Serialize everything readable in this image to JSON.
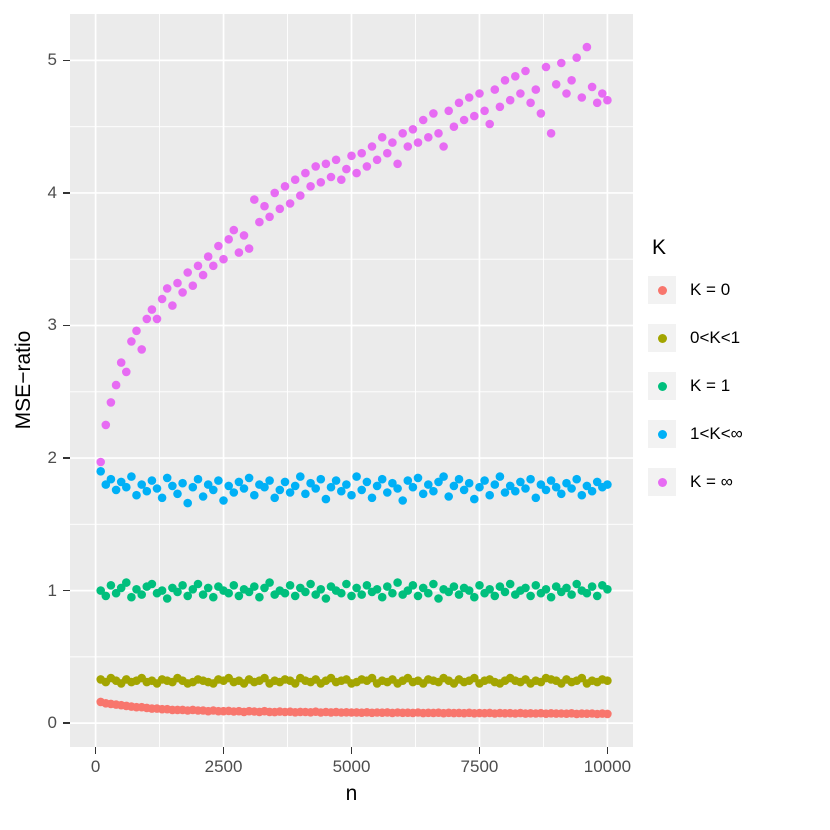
{
  "axes": {
    "x_title": "n",
    "y_title": "MSE−ratio"
  },
  "legend": {
    "title": "K",
    "items": [
      {
        "label": "K = 0",
        "color": "#F8766D",
        "key_bg": "#F2F2F2"
      },
      {
        "label": "0<K<1",
        "color": "#A3A500",
        "key_bg": "#F2F2F2"
      },
      {
        "label": "K = 1",
        "color": "#00BF7D",
        "key_bg": "#F2F2F2"
      },
      {
        "label": "1<K<∞",
        "color": "#00B0F6",
        "key_bg": "#F2F2F2"
      },
      {
        "label": "K = ∞",
        "color": "#E76BF3",
        "key_bg": "#F2F2F2"
      }
    ]
  },
  "chart_data": {
    "type": "scatter",
    "title": "",
    "xlabel": "n",
    "ylabel": "MSE−ratio",
    "xlim": [
      -500,
      10500
    ],
    "ylim": [
      -0.18,
      5.35
    ],
    "xticks": [
      0,
      2500,
      5000,
      7500,
      10000
    ],
    "xtick_labels": [
      "0",
      "2500",
      "5000",
      "7500",
      "10000"
    ],
    "yticks": [
      0,
      1,
      2,
      3,
      4,
      5
    ],
    "ytick_labels": [
      "0",
      "1",
      "2",
      "3",
      "4",
      "5"
    ],
    "x_minor": [
      1250,
      3750,
      6250,
      8750
    ],
    "y_minor": [
      0.5,
      1.5,
      2.5,
      3.5,
      4.5
    ],
    "grid": true,
    "panel_bg": "#EBEBEB",
    "grid_color": "#FFFFFF",
    "legend_title": "K",
    "legend_position": "right",
    "point_radius": 4.3,
    "x": [
      100,
      200,
      300,
      400,
      500,
      600,
      700,
      800,
      900,
      1000,
      1100,
      1200,
      1300,
      1400,
      1500,
      1600,
      1700,
      1800,
      1900,
      2000,
      2100,
      2200,
      2300,
      2400,
      2500,
      2600,
      2700,
      2800,
      2900,
      3000,
      3100,
      3200,
      3300,
      3400,
      3500,
      3600,
      3700,
      3800,
      3900,
      4000,
      4100,
      4200,
      4300,
      4400,
      4500,
      4600,
      4700,
      4800,
      4900,
      5000,
      5100,
      5200,
      5300,
      5400,
      5500,
      5600,
      5700,
      5800,
      5900,
      6000,
      6100,
      6200,
      6300,
      6400,
      6500,
      6600,
      6700,
      6800,
      6900,
      7000,
      7100,
      7200,
      7300,
      7400,
      7500,
      7600,
      7700,
      7800,
      7900,
      8000,
      8100,
      8200,
      8300,
      8400,
      8500,
      8600,
      8700,
      8800,
      8900,
      9000,
      9100,
      9200,
      9300,
      9400,
      9500,
      9600,
      9700,
      9800,
      9900,
      10000
    ],
    "series": [
      {
        "name": "K = 0",
        "color": "#F8766D",
        "values": [
          0.16,
          0.15,
          0.145,
          0.14,
          0.135,
          0.13,
          0.125,
          0.12,
          0.12,
          0.115,
          0.11,
          0.11,
          0.105,
          0.105,
          0.1,
          0.1,
          0.1,
          0.095,
          0.1,
          0.095,
          0.095,
          0.09,
          0.095,
          0.09,
          0.09,
          0.092,
          0.088,
          0.09,
          0.085,
          0.09,
          0.088,
          0.085,
          0.09,
          0.085,
          0.083,
          0.087,
          0.084,
          0.086,
          0.082,
          0.085,
          0.084,
          0.082,
          0.086,
          0.08,
          0.084,
          0.081,
          0.083,
          0.08,
          0.082,
          0.08,
          0.081,
          0.079,
          0.082,
          0.078,
          0.08,
          0.079,
          0.081,
          0.077,
          0.08,
          0.078,
          0.079,
          0.077,
          0.08,
          0.076,
          0.078,
          0.077,
          0.079,
          0.075,
          0.078,
          0.076,
          0.077,
          0.075,
          0.078,
          0.074,
          0.076,
          0.075,
          0.077,
          0.073,
          0.076,
          0.074,
          0.075,
          0.073,
          0.076,
          0.072,
          0.074,
          0.073,
          0.075,
          0.071,
          0.074,
          0.072,
          0.073,
          0.071,
          0.074,
          0.07,
          0.072,
          0.071,
          0.073,
          0.069,
          0.072,
          0.07
        ]
      },
      {
        "name": "0<K<1",
        "color": "#A3A500",
        "values": [
          0.33,
          0.31,
          0.34,
          0.32,
          0.3,
          0.33,
          0.31,
          0.32,
          0.34,
          0.31,
          0.32,
          0.3,
          0.33,
          0.32,
          0.31,
          0.34,
          0.32,
          0.3,
          0.31,
          0.33,
          0.32,
          0.31,
          0.3,
          0.33,
          0.32,
          0.34,
          0.31,
          0.32,
          0.3,
          0.33,
          0.31,
          0.32,
          0.34,
          0.3,
          0.32,
          0.31,
          0.33,
          0.32,
          0.3,
          0.34,
          0.32,
          0.31,
          0.33,
          0.3,
          0.32,
          0.34,
          0.31,
          0.32,
          0.33,
          0.3,
          0.31,
          0.33,
          0.32,
          0.34,
          0.3,
          0.32,
          0.31,
          0.33,
          0.3,
          0.32,
          0.34,
          0.31,
          0.32,
          0.3,
          0.33,
          0.32,
          0.31,
          0.34,
          0.32,
          0.3,
          0.33,
          0.31,
          0.32,
          0.34,
          0.3,
          0.32,
          0.33,
          0.31,
          0.3,
          0.32,
          0.34,
          0.32,
          0.31,
          0.33,
          0.3,
          0.32,
          0.31,
          0.34,
          0.33,
          0.32,
          0.3,
          0.33,
          0.31,
          0.32,
          0.34,
          0.3,
          0.32,
          0.31,
          0.33,
          0.32
        ]
      },
      {
        "name": "K = 1",
        "color": "#00BF7D",
        "values": [
          1.0,
          0.96,
          1.04,
          0.98,
          1.02,
          1.06,
          0.95,
          1.01,
          0.97,
          1.03,
          1.05,
          0.98,
          1.0,
          0.94,
          1.02,
          0.99,
          1.04,
          0.96,
          1.01,
          1.05,
          0.97,
          1.02,
          0.95,
          1.03,
          1.0,
          0.98,
          1.04,
          0.96,
          1.01,
          0.99,
          1.03,
          0.95,
          1.02,
          1.06,
          0.97,
          1.0,
          0.98,
          1.04,
          0.96,
          1.02,
          0.99,
          1.05,
          0.97,
          1.01,
          0.94,
          1.03,
          1.0,
          0.98,
          1.05,
          0.96,
          1.02,
          0.97,
          1.04,
          0.99,
          1.01,
          0.95,
          1.03,
          0.98,
          1.06,
          0.97,
          1.0,
          1.04,
          0.96,
          1.02,
          0.98,
          1.05,
          0.94,
          1.01,
          0.99,
          1.03,
          0.97,
          1.02,
          1.0,
          0.95,
          1.04,
          0.98,
          1.01,
          0.96,
          1.03,
          0.99,
          1.05,
          0.97,
          1.0,
          1.02,
          0.96,
          1.04,
          0.98,
          1.01,
          0.95,
          1.03,
          0.99,
          1.02,
          0.97,
          1.05,
          1.0,
          0.98,
          1.03,
          0.96,
          1.04,
          1.01
        ]
      },
      {
        "name": "1<K<∞",
        "color": "#00B0F6",
        "values": [
          1.9,
          1.8,
          1.84,
          1.76,
          1.82,
          1.78,
          1.86,
          1.72,
          1.8,
          1.75,
          1.83,
          1.77,
          1.7,
          1.85,
          1.79,
          1.73,
          1.81,
          1.66,
          1.78,
          1.84,
          1.71,
          1.8,
          1.76,
          1.83,
          1.68,
          1.79,
          1.74,
          1.82,
          1.77,
          1.85,
          1.72,
          1.8,
          1.78,
          1.83,
          1.7,
          1.76,
          1.82,
          1.74,
          1.79,
          1.86,
          1.73,
          1.81,
          1.77,
          1.84,
          1.69,
          1.78,
          1.83,
          1.75,
          1.8,
          1.72,
          1.86,
          1.76,
          1.82,
          1.7,
          1.79,
          1.84,
          1.74,
          1.81,
          1.77,
          1.68,
          1.83,
          1.78,
          1.85,
          1.73,
          1.8,
          1.75,
          1.82,
          1.86,
          1.71,
          1.79,
          1.84,
          1.76,
          1.81,
          1.69,
          1.78,
          1.83,
          1.72,
          1.8,
          1.86,
          1.74,
          1.79,
          1.75,
          1.82,
          1.77,
          1.84,
          1.7,
          1.8,
          1.76,
          1.83,
          1.78,
          1.73,
          1.81,
          1.77,
          1.84,
          1.72,
          1.79,
          1.75,
          1.82,
          1.78,
          1.8
        ]
      },
      {
        "name": "K = ∞",
        "color": "#E76BF3",
        "values": [
          1.97,
          2.25,
          2.42,
          2.55,
          2.72,
          2.65,
          2.88,
          2.96,
          2.82,
          3.05,
          3.12,
          3.05,
          3.2,
          3.28,
          3.15,
          3.32,
          3.25,
          3.4,
          3.3,
          3.45,
          3.38,
          3.52,
          3.45,
          3.6,
          3.5,
          3.65,
          3.72,
          3.55,
          3.68,
          3.58,
          3.95,
          3.78,
          3.9,
          3.82,
          4.0,
          3.88,
          4.05,
          3.92,
          4.1,
          3.98,
          4.15,
          4.05,
          4.2,
          4.08,
          4.22,
          4.12,
          4.25,
          4.1,
          4.18,
          4.28,
          4.15,
          4.3,
          4.2,
          4.35,
          4.25,
          4.42,
          4.3,
          4.38,
          4.22,
          4.45,
          4.35,
          4.48,
          4.38,
          4.55,
          4.42,
          4.6,
          4.45,
          4.35,
          4.62,
          4.5,
          4.68,
          4.55,
          4.72,
          4.58,
          4.75,
          4.62,
          4.52,
          4.78,
          4.65,
          4.85,
          4.7,
          4.88,
          4.75,
          4.92,
          4.68,
          4.78,
          4.6,
          4.95,
          4.45,
          4.82,
          4.98,
          4.75,
          4.85,
          5.02,
          4.72,
          5.1,
          4.8,
          4.68,
          4.75,
          4.7
        ]
      }
    ]
  }
}
